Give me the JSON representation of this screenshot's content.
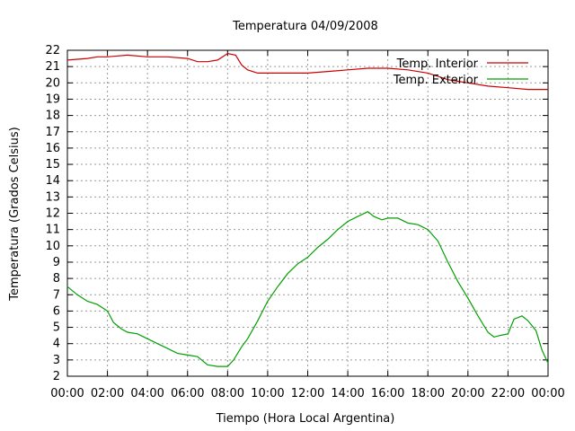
{
  "chart_data": {
    "type": "line",
    "title": "Temperatura 04/09/2008",
    "xlabel": "Tiempo (Hora Local Argentina)",
    "ylabel": "Temperatura (Grados Celsius)",
    "xlim": [
      0,
      24
    ],
    "ylim": [
      2,
      22
    ],
    "x_ticks": [
      "00:00",
      "02:00",
      "04:00",
      "06:00",
      "08:00",
      "10:00",
      "12:00",
      "14:00",
      "16:00",
      "18:00",
      "20:00",
      "22:00",
      "00:00"
    ],
    "y_ticks": [
      "2",
      "3",
      "4",
      "5",
      "6",
      "7",
      "8",
      "9",
      "10",
      "11",
      "12",
      "13",
      "14",
      "15",
      "16",
      "17",
      "18",
      "19",
      "20",
      "21",
      "22"
    ],
    "grid": true,
    "legend_position": "top-right",
    "series": [
      {
        "name": "Temp. Interior",
        "color": "#cc0000",
        "points": [
          [
            0,
            21.4
          ],
          [
            1,
            21.5
          ],
          [
            1.5,
            21.6
          ],
          [
            2,
            21.6
          ],
          [
            3,
            21.7
          ],
          [
            4,
            21.6
          ],
          [
            5,
            21.6
          ],
          [
            6,
            21.5
          ],
          [
            6.5,
            21.3
          ],
          [
            7,
            21.3
          ],
          [
            7.5,
            21.4
          ],
          [
            8,
            21.8
          ],
          [
            8.4,
            21.7
          ],
          [
            8.7,
            21.1
          ],
          [
            9,
            20.8
          ],
          [
            9.5,
            20.6
          ],
          [
            10,
            20.6
          ],
          [
            11,
            20.6
          ],
          [
            12,
            20.6
          ],
          [
            13,
            20.7
          ],
          [
            14,
            20.8
          ],
          [
            15,
            20.9
          ],
          [
            16,
            20.9
          ],
          [
            17,
            20.8
          ],
          [
            18,
            20.6
          ],
          [
            19,
            20.2
          ],
          [
            20,
            20.0
          ],
          [
            21,
            19.8
          ],
          [
            22,
            19.7
          ],
          [
            23,
            19.6
          ],
          [
            24,
            19.6
          ]
        ]
      },
      {
        "name": "Temp. Exterior",
        "color": "#00a000",
        "points": [
          [
            0,
            7.5
          ],
          [
            0.5,
            7.0
          ],
          [
            1,
            6.6
          ],
          [
            1.5,
            6.4
          ],
          [
            2,
            6.0
          ],
          [
            2.3,
            5.3
          ],
          [
            2.7,
            4.9
          ],
          [
            3,
            4.7
          ],
          [
            3.5,
            4.6
          ],
          [
            4,
            4.3
          ],
          [
            4.5,
            4.0
          ],
          [
            5,
            3.7
          ],
          [
            5.5,
            3.4
          ],
          [
            6,
            3.3
          ],
          [
            6.5,
            3.2
          ],
          [
            7,
            2.7
          ],
          [
            7.5,
            2.6
          ],
          [
            8,
            2.6
          ],
          [
            8.3,
            3.0
          ],
          [
            8.7,
            3.8
          ],
          [
            9,
            4.3
          ],
          [
            9.5,
            5.4
          ],
          [
            10,
            6.6
          ],
          [
            10.5,
            7.5
          ],
          [
            11,
            8.3
          ],
          [
            11.5,
            8.9
          ],
          [
            12,
            9.3
          ],
          [
            12.5,
            9.9
          ],
          [
            13,
            10.4
          ],
          [
            13.5,
            11.0
          ],
          [
            14,
            11.5
          ],
          [
            14.5,
            11.8
          ],
          [
            15,
            12.1
          ],
          [
            15.3,
            11.8
          ],
          [
            15.7,
            11.6
          ],
          [
            16,
            11.7
          ],
          [
            16.5,
            11.7
          ],
          [
            17,
            11.4
          ],
          [
            17.5,
            11.3
          ],
          [
            18,
            11.0
          ],
          [
            18.5,
            10.3
          ],
          [
            19,
            9.0
          ],
          [
            19.5,
            7.8
          ],
          [
            20,
            6.8
          ],
          [
            20.5,
            5.7
          ],
          [
            21,
            4.7
          ],
          [
            21.3,
            4.4
          ],
          [
            21.6,
            4.5
          ],
          [
            22,
            4.6
          ],
          [
            22.3,
            5.5
          ],
          [
            22.7,
            5.7
          ],
          [
            23,
            5.4
          ],
          [
            23.4,
            4.8
          ],
          [
            23.7,
            3.6
          ],
          [
            24,
            2.8
          ]
        ]
      }
    ]
  }
}
